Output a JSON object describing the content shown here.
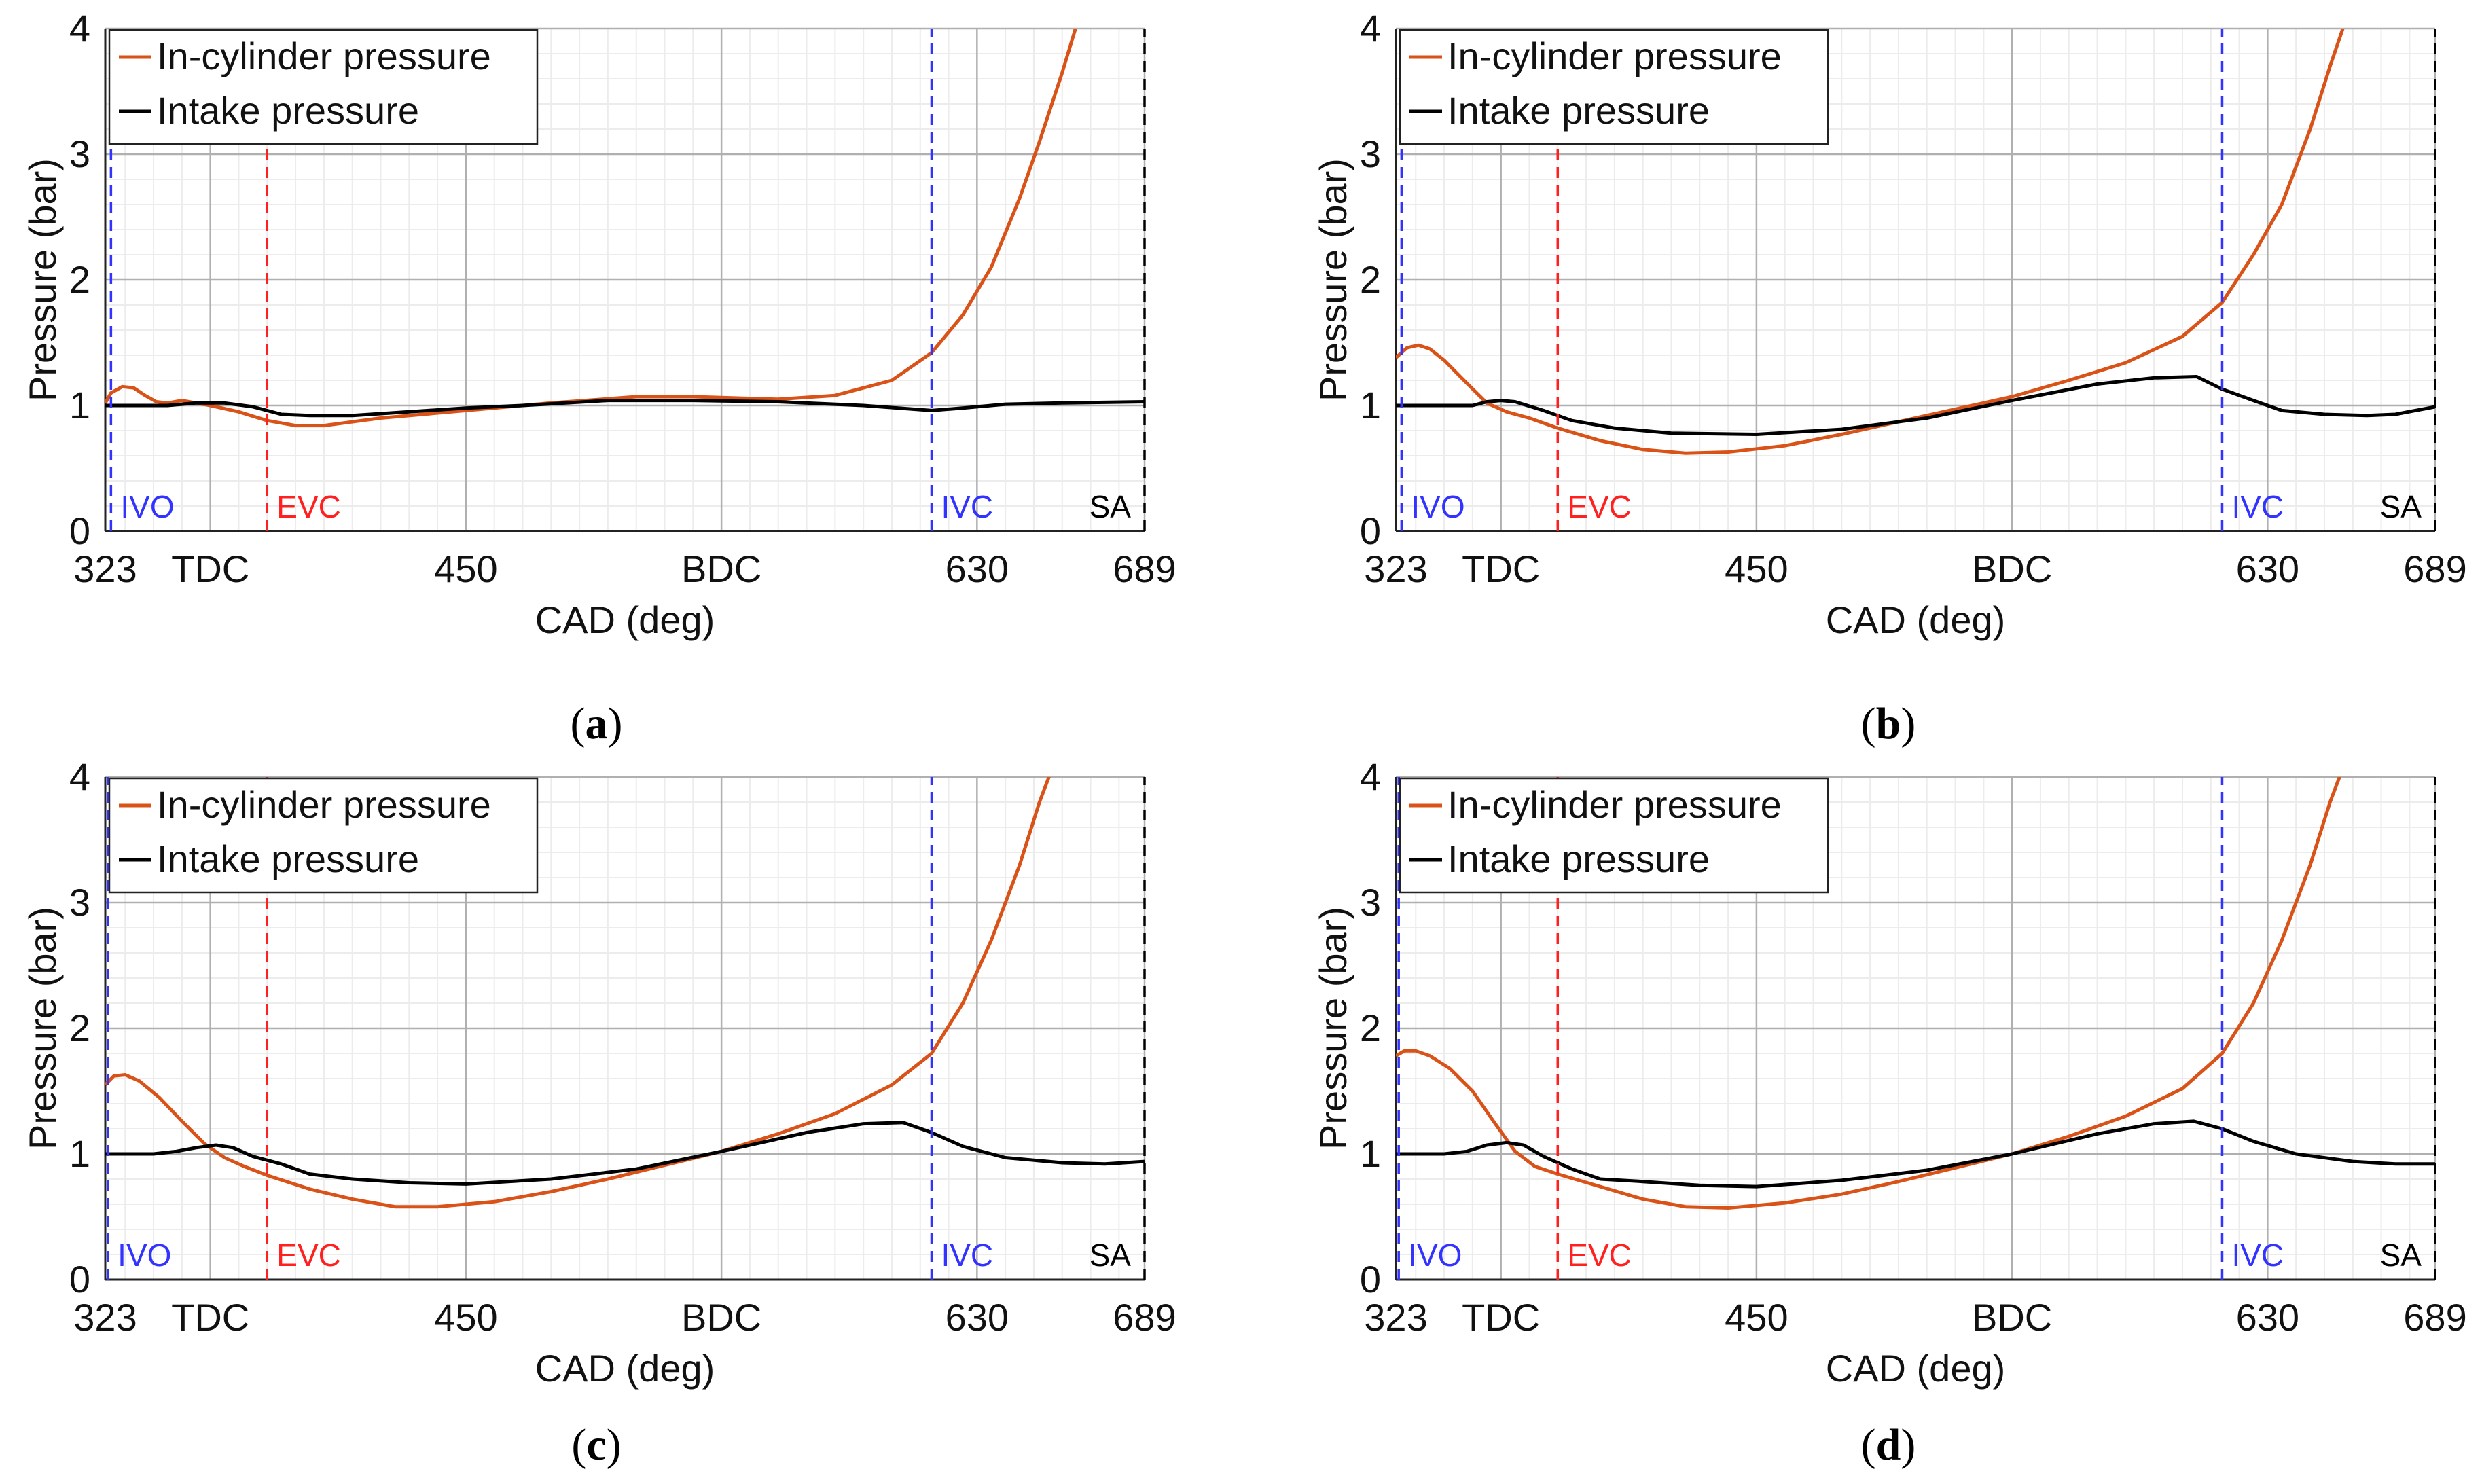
{
  "colors": {
    "cyl": "#d95319",
    "intake": "#000000",
    "ivo": "#3333ff",
    "evc": "#ff2020",
    "ivc": "#3333ff",
    "sa": "#000000",
    "grid_major": "#b0b0b0",
    "grid_minor": "#ececec"
  },
  "chart_data": [
    {
      "type": "line",
      "panel_label": "a",
      "xlabel": "CAD (deg)",
      "ylabel": "Pressure (bar)",
      "xlim": [
        323,
        689
      ],
      "ylim": [
        0,
        4
      ],
      "xticks": [
        {
          "v": 323,
          "label": "323"
        },
        {
          "v": 360,
          "label": "TDC"
        },
        {
          "v": 450,
          "label": "450"
        },
        {
          "v": 540,
          "label": "BDC"
        },
        {
          "v": 630,
          "label": "630"
        },
        {
          "v": 689,
          "label": "689"
        }
      ],
      "yticks": [
        0,
        1,
        2,
        3,
        4
      ],
      "grid": true,
      "legend": "top-left",
      "markers": [
        {
          "x": 325,
          "label": "IVO",
          "color": "ivo"
        },
        {
          "x": 380,
          "label": "EVC",
          "color": "evc"
        },
        {
          "x": 614,
          "label": "IVC",
          "color": "ivc"
        },
        {
          "x": 689,
          "label": "SA",
          "color": "sa"
        }
      ],
      "series": [
        {
          "name": "In-cylinder pressure",
          "color": "cyl",
          "x": [
            323,
            325,
            329,
            333,
            337,
            341,
            345,
            350,
            355,
            360,
            370,
            380,
            390,
            400,
            420,
            450,
            480,
            510,
            530,
            560,
            580,
            600,
            614,
            625,
            635,
            645,
            652,
            660,
            666
          ],
          "y": [
            1.02,
            1.1,
            1.15,
            1.14,
            1.08,
            1.03,
            1.02,
            1.04,
            1.02,
            1.0,
            0.95,
            0.88,
            0.84,
            0.84,
            0.9,
            0.96,
            1.02,
            1.07,
            1.07,
            1.05,
            1.08,
            1.2,
            1.42,
            1.72,
            2.1,
            2.65,
            3.1,
            3.65,
            4.1
          ]
        },
        {
          "name": "Intake pressure",
          "color": "intake",
          "x": [
            323,
            335,
            345,
            355,
            365,
            375,
            385,
            395,
            410,
            430,
            450,
            470,
            500,
            530,
            560,
            590,
            614,
            625,
            640,
            660,
            689
          ],
          "y": [
            1.0,
            1.0,
            1.0,
            1.02,
            1.02,
            0.99,
            0.93,
            0.92,
            0.92,
            0.95,
            0.98,
            1.0,
            1.04,
            1.04,
            1.03,
            1.0,
            0.96,
            0.98,
            1.01,
            1.02,
            1.03
          ]
        }
      ]
    },
    {
      "type": "line",
      "panel_label": "b",
      "xlabel": "CAD (deg)",
      "ylabel": "Pressure (bar)",
      "xlim": [
        323,
        689
      ],
      "ylim": [
        0,
        4
      ],
      "xticks": [
        {
          "v": 323,
          "label": "323"
        },
        {
          "v": 360,
          "label": "TDC"
        },
        {
          "v": 450,
          "label": "450"
        },
        {
          "v": 540,
          "label": "BDC"
        },
        {
          "v": 630,
          "label": "630"
        },
        {
          "v": 689,
          "label": "689"
        }
      ],
      "yticks": [
        0,
        1,
        2,
        3,
        4
      ],
      "grid": true,
      "legend": "top-left",
      "markers": [
        {
          "x": 325,
          "label": "IVO",
          "color": "ivo"
        },
        {
          "x": 380,
          "label": "EVC",
          "color": "evc"
        },
        {
          "x": 614,
          "label": "IVC",
          "color": "ivc"
        },
        {
          "x": 689,
          "label": "SA",
          "color": "sa"
        }
      ],
      "series": [
        {
          "name": "In-cylinder pressure",
          "color": "cyl",
          "x": [
            323,
            327,
            331,
            335,
            340,
            347,
            355,
            362,
            370,
            380,
            395,
            410,
            425,
            440,
            460,
            480,
            500,
            520,
            540,
            560,
            580,
            600,
            614,
            625,
            635,
            645,
            652,
            658
          ],
          "y": [
            1.38,
            1.46,
            1.48,
            1.45,
            1.36,
            1.2,
            1.02,
            0.95,
            0.9,
            0.82,
            0.72,
            0.65,
            0.62,
            0.63,
            0.68,
            0.77,
            0.87,
            0.97,
            1.07,
            1.2,
            1.34,
            1.55,
            1.82,
            2.2,
            2.6,
            3.2,
            3.7,
            4.1
          ]
        },
        {
          "name": "Intake pressure",
          "color": "intake",
          "x": [
            323,
            340,
            350,
            355,
            360,
            365,
            375,
            385,
            400,
            420,
            450,
            480,
            510,
            540,
            570,
            590,
            605,
            614,
            625,
            635,
            650,
            665,
            675,
            689
          ],
          "y": [
            1.0,
            1.0,
            1.0,
            1.03,
            1.04,
            1.03,
            0.96,
            0.88,
            0.82,
            0.78,
            0.77,
            0.81,
            0.9,
            1.04,
            1.17,
            1.22,
            1.23,
            1.13,
            1.04,
            0.96,
            0.93,
            0.92,
            0.93,
            0.99
          ]
        }
      ]
    },
    {
      "type": "line",
      "panel_label": "c",
      "xlabel": "CAD (deg)",
      "ylabel": "Pressure (bar)",
      "xlim": [
        323,
        689
      ],
      "ylim": [
        0,
        4
      ],
      "xticks": [
        {
          "v": 323,
          "label": "323"
        },
        {
          "v": 360,
          "label": "TDC"
        },
        {
          "v": 450,
          "label": "450"
        },
        {
          "v": 540,
          "label": "BDC"
        },
        {
          "v": 630,
          "label": "630"
        },
        {
          "v": 689,
          "label": "689"
        }
      ],
      "yticks": [
        0,
        1,
        2,
        3,
        4
      ],
      "grid": true,
      "legend": "top-left",
      "markers": [
        {
          "x": 324,
          "label": "IVO",
          "color": "ivo"
        },
        {
          "x": 380,
          "label": "EVC",
          "color": "evc"
        },
        {
          "x": 614,
          "label": "IVC",
          "color": "ivc"
        },
        {
          "x": 689,
          "label": "SA",
          "color": "sa"
        }
      ],
      "series": [
        {
          "name": "In-cylinder pressure",
          "color": "cyl",
          "x": [
            323,
            326,
            330,
            335,
            342,
            350,
            358,
            365,
            372,
            380,
            395,
            410,
            425,
            440,
            460,
            480,
            500,
            520,
            540,
            560,
            580,
            600,
            614,
            625,
            635,
            645,
            652,
            657
          ],
          "y": [
            1.55,
            1.62,
            1.63,
            1.58,
            1.45,
            1.26,
            1.08,
            0.97,
            0.9,
            0.83,
            0.72,
            0.64,
            0.58,
            0.58,
            0.62,
            0.7,
            0.8,
            0.91,
            1.02,
            1.16,
            1.32,
            1.55,
            1.8,
            2.2,
            2.7,
            3.3,
            3.8,
            4.1
          ]
        },
        {
          "name": "Intake pressure",
          "color": "intake",
          "x": [
            323,
            340,
            348,
            355,
            362,
            368,
            375,
            385,
            395,
            410,
            430,
            450,
            480,
            510,
            540,
            570,
            590,
            604,
            614,
            625,
            640,
            660,
            675,
            689
          ],
          "y": [
            1.0,
            1.0,
            1.02,
            1.05,
            1.07,
            1.05,
            0.98,
            0.92,
            0.84,
            0.8,
            0.77,
            0.76,
            0.8,
            0.88,
            1.02,
            1.17,
            1.24,
            1.25,
            1.17,
            1.06,
            0.97,
            0.93,
            0.92,
            0.94
          ]
        }
      ]
    },
    {
      "type": "line",
      "panel_label": "d",
      "xlabel": "CAD (deg)",
      "ylabel": "Pressure (bar)",
      "xlim": [
        323,
        689
      ],
      "ylim": [
        0,
        4
      ],
      "xticks": [
        {
          "v": 323,
          "label": "323"
        },
        {
          "v": 360,
          "label": "TDC"
        },
        {
          "v": 450,
          "label": "450"
        },
        {
          "v": 540,
          "label": "BDC"
        },
        {
          "v": 630,
          "label": "630"
        },
        {
          "v": 689,
          "label": "689"
        }
      ],
      "yticks": [
        0,
        1,
        2,
        3,
        4
      ],
      "grid": true,
      "legend": "top-left",
      "markers": [
        {
          "x": 324,
          "label": "IVO",
          "color": "ivo"
        },
        {
          "x": 380,
          "label": "EVC",
          "color": "evc"
        },
        {
          "x": 614,
          "label": "IVC",
          "color": "ivc"
        },
        {
          "x": 689,
          "label": "SA",
          "color": "sa"
        }
      ],
      "series": [
        {
          "name": "In-cylinder pressure",
          "color": "cyl",
          "x": [
            323,
            326,
            330,
            335,
            342,
            350,
            358,
            365,
            372,
            380,
            395,
            410,
            425,
            440,
            460,
            480,
            500,
            520,
            540,
            560,
            580,
            600,
            614,
            625,
            635,
            645,
            652,
            657
          ],
          "y": [
            1.78,
            1.82,
            1.82,
            1.78,
            1.68,
            1.5,
            1.24,
            1.02,
            0.9,
            0.84,
            0.74,
            0.64,
            0.58,
            0.57,
            0.61,
            0.68,
            0.78,
            0.89,
            1.0,
            1.14,
            1.3,
            1.52,
            1.8,
            2.2,
            2.7,
            3.3,
            3.8,
            4.1
          ]
        },
        {
          "name": "Intake pressure",
          "color": "intake",
          "x": [
            323,
            340,
            348,
            355,
            362,
            368,
            375,
            385,
            395,
            410,
            430,
            450,
            480,
            510,
            540,
            570,
            590,
            604,
            614,
            625,
            640,
            660,
            675,
            689
          ],
          "y": [
            1.0,
            1.0,
            1.02,
            1.07,
            1.09,
            1.07,
            0.98,
            0.88,
            0.8,
            0.78,
            0.75,
            0.74,
            0.79,
            0.87,
            1.0,
            1.16,
            1.24,
            1.26,
            1.2,
            1.1,
            1.0,
            0.94,
            0.92,
            0.92
          ]
        }
      ]
    }
  ]
}
